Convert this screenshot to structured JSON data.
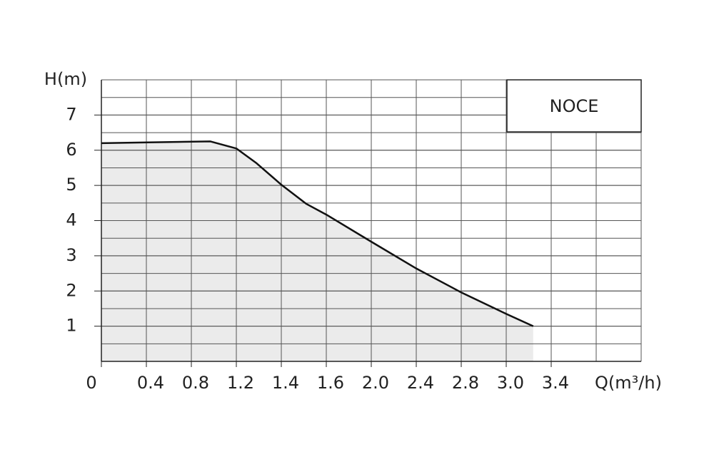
{
  "chart_data": {
    "type": "area",
    "x_label": "Q(m³/h)",
    "y_label": "H(m)",
    "x": [
      0,
      0.37,
      0.97,
      1.2,
      1.29,
      1.4,
      1.51,
      1.6,
      2.0,
      2.4,
      2.8,
      3.0,
      3.24
    ],
    "series": [
      {
        "name": "NOCE",
        "color": "#111111",
        "fill": "#ebebeb",
        "values": [
          6.2,
          6.22,
          6.25,
          6.05,
          5.63,
          5.02,
          4.48,
          4.17,
          3.4,
          2.64,
          1.96,
          1.35,
          1.0
        ]
      }
    ],
    "xlim": [
      0,
      4.2
    ],
    "xticks": [
      0,
      0.4,
      0.8,
      1.2,
      1.4,
      1.6,
      {
        "value": 2.0,
        "label": "2.0"
      },
      2.4,
      2.8,
      {
        "value": 3.0,
        "label": "3.0"
      },
      3.4
    ],
    "ylim": [
      0,
      8
    ],
    "yticks": [
      1,
      2,
      3,
      4,
      5,
      6,
      7
    ],
    "grid": true,
    "legend": "upper right"
  }
}
